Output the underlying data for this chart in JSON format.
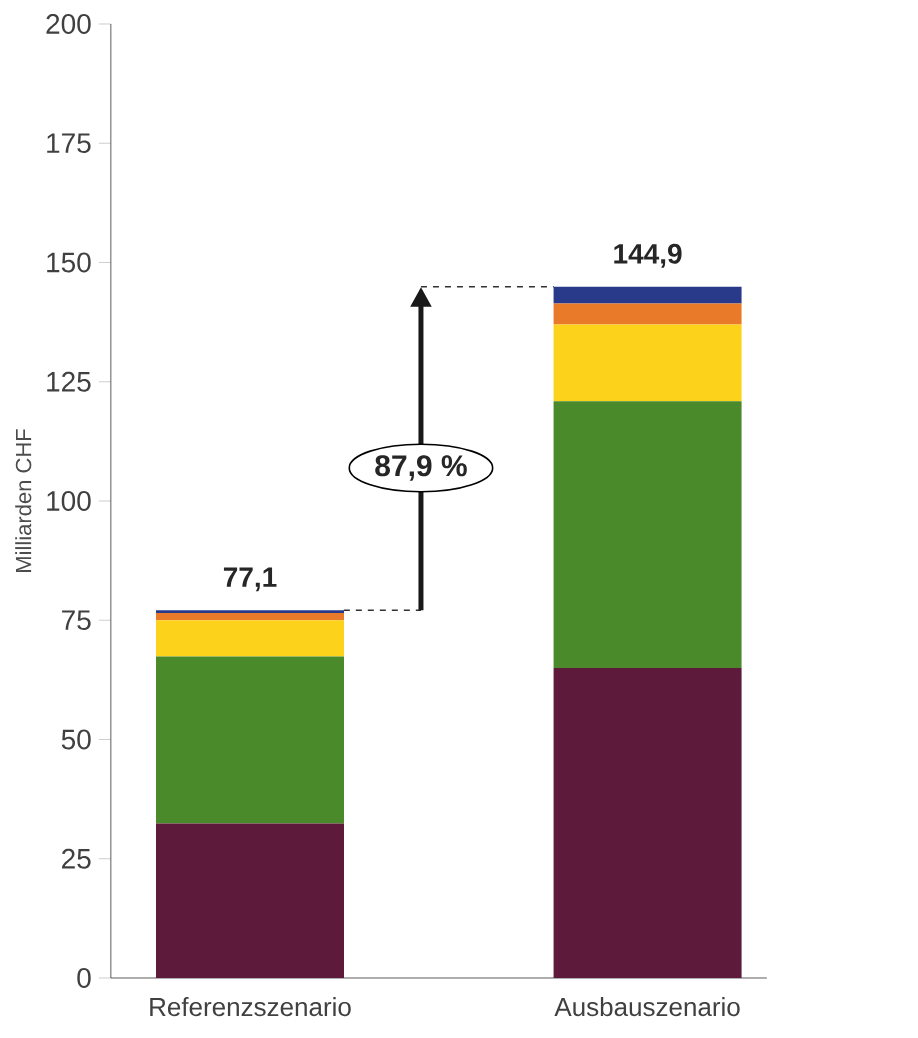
{
  "chart_data": {
    "type": "bar",
    "stacked": true,
    "ylabel": "Milliarden CHF",
    "categories": [
      "Referenzszenario",
      "Ausbauszenario"
    ],
    "series": [
      {
        "color": "#5e1a3a",
        "values": [
          32.4,
          65.0
        ]
      },
      {
        "color": "#4a8a2a",
        "values": [
          35.0,
          55.9
        ]
      },
      {
        "color": "#fcd21a",
        "values": [
          7.6,
          16.1
        ]
      },
      {
        "color": "#e87a2a",
        "values": [
          1.5,
          4.4
        ]
      },
      {
        "color": "#2a3a8a",
        "values": [
          0.6,
          3.5
        ]
      }
    ],
    "totals": [
      "77,1",
      "144,9"
    ],
    "annotations": [
      "87,9 %"
    ],
    "ylim": [
      0,
      200
    ],
    "yticks": [
      0,
      25,
      50,
      75,
      100,
      125,
      150,
      175,
      200
    ]
  }
}
